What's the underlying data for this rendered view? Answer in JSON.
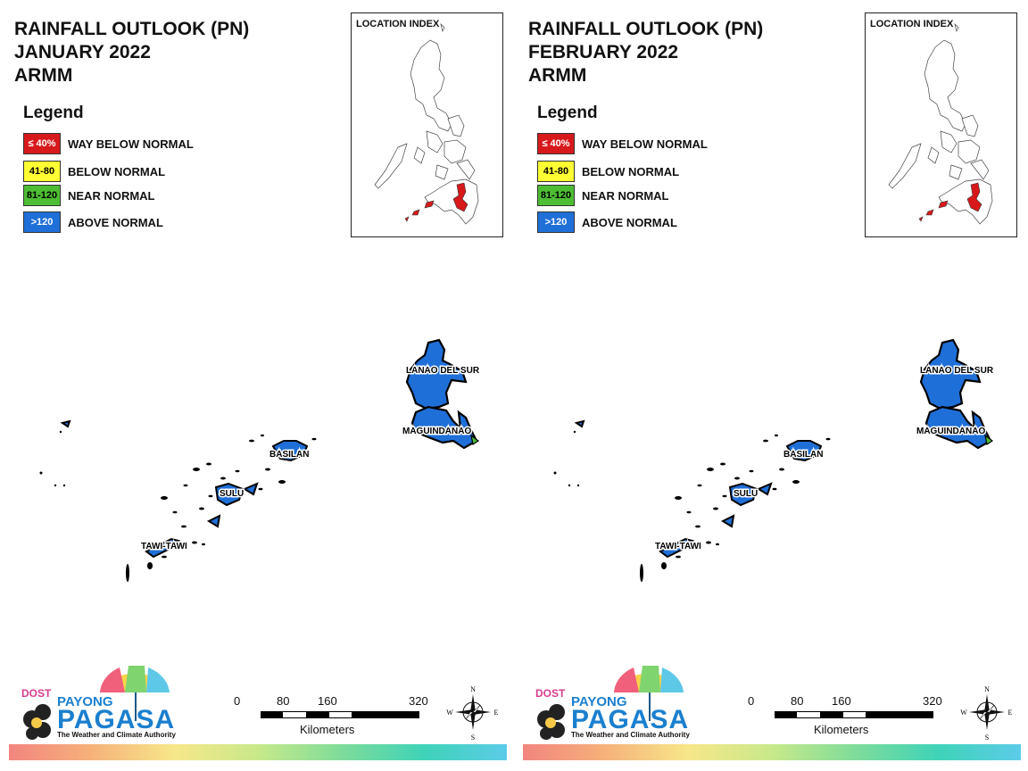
{
  "panels": [
    {
      "title_line1": "RAINFALL OUTLOOK (PN)",
      "title_line2": "JANUARY 2022",
      "title_line3": "ARMM",
      "legend_title": "Legend",
      "legend": [
        {
          "range": "≤ 40%",
          "label": "WAY BELOW NORMAL",
          "color": "#d7191c"
        },
        {
          "range": "41-80",
          "label": "BELOW NORMAL",
          "color": "#ffff33"
        },
        {
          "range": "81-120",
          "label": "NEAR NORMAL",
          "color": "#4dbd33"
        },
        {
          "range": ">120",
          "label": "ABOVE NORMAL",
          "color": "#1f6fd8"
        }
      ],
      "location_index_title": "LOCATION INDEX",
      "map_labels": {
        "lanao": "LANAO DEL SUR",
        "maguindanao": "MAGUINDANAO",
        "basilan": "BASILAN",
        "sulu": "SULU",
        "tawi": "TAWI-TAWI"
      },
      "provinces_category": {
        "lanao": "ABOVE NORMAL",
        "maguindanao": "ABOVE NORMAL",
        "basilan": "ABOVE NORMAL",
        "sulu": "ABOVE NORMAL",
        "tawi": "ABOVE NORMAL"
      },
      "scale": {
        "ticks": [
          "0",
          "80",
          "160",
          "320"
        ],
        "unit": "Kilometers"
      },
      "compass": {
        "n": "N",
        "s": "S",
        "e": "E",
        "w": "W"
      },
      "logo": {
        "dost": "DOST",
        "payong": "PAYONG",
        "pagasa": "PAGASA",
        "tagline": "The Weather and Climate Authority"
      }
    },
    {
      "title_line1": "RAINFALL OUTLOOK (PN)",
      "title_line2": "FEBRUARY 2022",
      "title_line3": "ARMM",
      "legend_title": "Legend",
      "legend": [
        {
          "range": "≤ 40%",
          "label": "WAY BELOW NORMAL",
          "color": "#d7191c"
        },
        {
          "range": "41-80",
          "label": "BELOW NORMAL",
          "color": "#ffff33"
        },
        {
          "range": "81-120",
          "label": "NEAR NORMAL",
          "color": "#4dbd33"
        },
        {
          "range": ">120",
          "label": "ABOVE NORMAL",
          "color": "#1f6fd8"
        }
      ],
      "location_index_title": "LOCATION INDEX",
      "map_labels": {
        "lanao": "LANAO DEL SUR",
        "maguindanao": "MAGUINDANAO",
        "basilan": "BASILAN",
        "sulu": "SULU",
        "tawi": "TAWI-TAWI"
      },
      "provinces_category": {
        "lanao": "ABOVE NORMAL",
        "maguindanao": "ABOVE NORMAL",
        "basilan": "ABOVE NORMAL",
        "sulu": "ABOVE NORMAL",
        "tawi": "ABOVE NORMAL"
      },
      "scale": {
        "ticks": [
          "0",
          "80",
          "160",
          "320"
        ],
        "unit": "Kilometers"
      },
      "compass": {
        "n": "N",
        "s": "S",
        "e": "E",
        "w": "W"
      },
      "logo": {
        "dost": "DOST",
        "payong": "PAYONG",
        "pagasa": "PAGASA",
        "tagline": "The Weather and Climate Authority"
      }
    }
  ]
}
